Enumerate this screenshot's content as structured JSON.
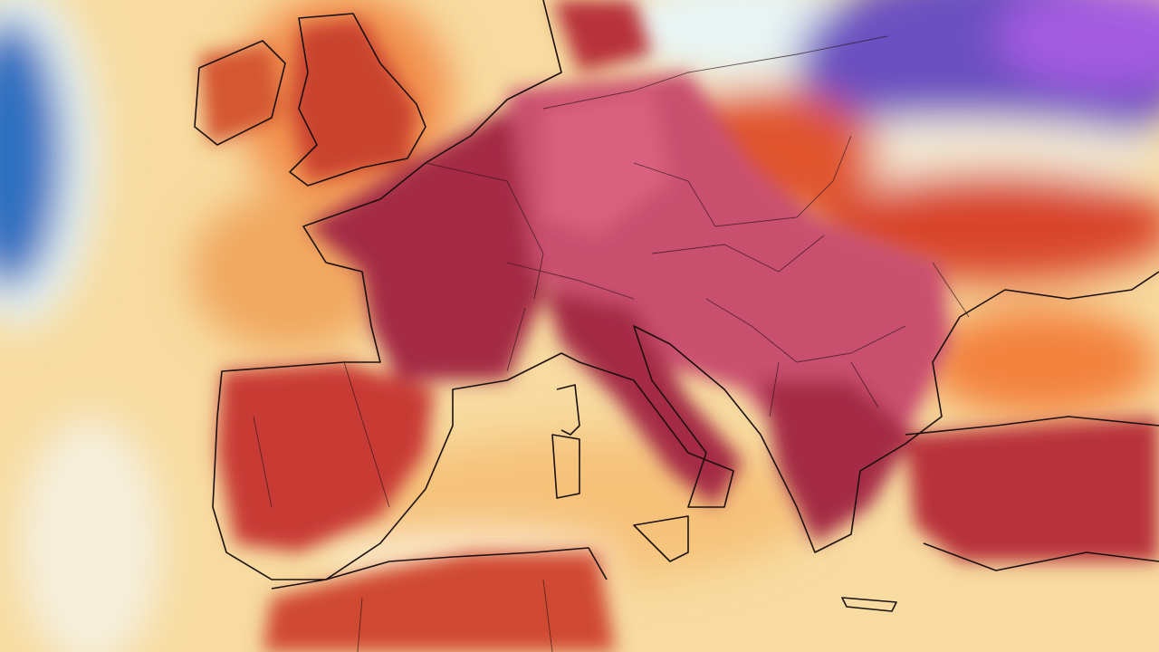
{
  "map": {
    "kind": "temperature-anomaly-heatmap",
    "region": "Europe",
    "colors": {
      "cold_deep": "#2d6fc0",
      "cold": "#7fc4ea",
      "cool_pale": "#e8f4f4",
      "neutral": "#f7e0a6",
      "warm": "#f3a45c",
      "hot": "#e0552e",
      "very_hot": "#b8303a",
      "extreme": "#9c2a4a",
      "extreme_pink": "#d9607e",
      "cold_purple": "#6a4fc0",
      "cold_violet": "#a35be0",
      "coastline": "#1a1010"
    }
  }
}
